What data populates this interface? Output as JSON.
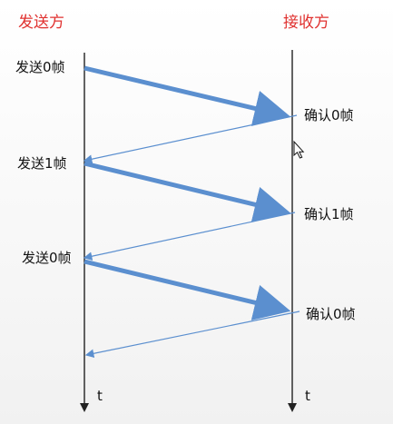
{
  "sender": {
    "title": "发送方",
    "time_label": "t"
  },
  "receiver": {
    "title": "接收方",
    "time_label": "t"
  },
  "events": {
    "send_0": "发送0帧",
    "ack_0": "确认0帧",
    "send_1": "发送1帧",
    "ack_1": "确认1帧",
    "send_0_again": "发送0帧",
    "ack_0_again": "确认0帧"
  },
  "colors": {
    "role_title": "#e0312f",
    "text": "#111111",
    "timeline": "#222222",
    "frame_arrow": "#5b8fcf",
    "ack_arrow": "#5b8fcf"
  },
  "icons": {
    "cursor": "mouse-pointer-icon"
  }
}
